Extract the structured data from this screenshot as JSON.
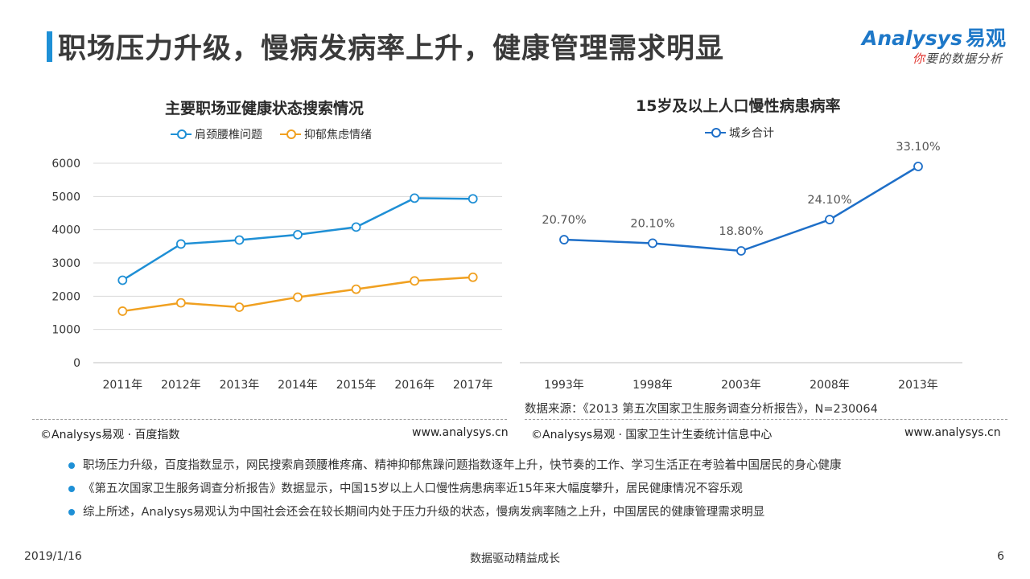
{
  "header": {
    "title": "职场压力升级，慢病发病率上升，健康管理需求明显",
    "logo_word": "Analysys",
    "logo_cn": "易观",
    "logo_slogan_first": "你",
    "logo_slogan_rest": "要的数据分析"
  },
  "colors": {
    "blue": "#1e8fd5",
    "orange": "#f0a020",
    "accent": "#1e90d6"
  },
  "chart_data": [
    {
      "type": "line",
      "title": "主要职场亚健康状态搜索情况",
      "categories": [
        "2011年",
        "2012年",
        "2013年",
        "2014年",
        "2015年",
        "2016年",
        "2017年"
      ],
      "series": [
        {
          "name": "肩颈腰椎问题",
          "color": "#1e8fd5",
          "values": [
            2480,
            3570,
            3690,
            3850,
            4080,
            4950,
            4930
          ]
        },
        {
          "name": "抑郁焦虑情绪",
          "color": "#f0a020",
          "values": [
            1550,
            1800,
            1670,
            1970,
            2210,
            2460,
            2570
          ]
        }
      ],
      "yticks": [
        "0",
        "1000",
        "2000",
        "3000",
        "4000",
        "5000",
        "6000"
      ],
      "ylim": [
        0,
        6000
      ],
      "grid": true,
      "legend": "top"
    },
    {
      "type": "line",
      "title": "15岁及以上人口慢性病患病率",
      "categories": [
        "1993年",
        "1998年",
        "2003年",
        "2008年",
        "2013年"
      ],
      "series": [
        {
          "name": "城乡合计",
          "color": "#1e6fc8",
          "values": [
            20.7,
            20.1,
            18.8,
            24.1,
            33.1
          ],
          "labels": [
            "20.70%",
            "20.10%",
            "18.80%",
            "24.10%",
            "33.10%"
          ]
        }
      ],
      "ylim": [
        10,
        35
      ],
      "grid": false,
      "legend": "top"
    }
  ],
  "data_source_note": "数据来源：《2013 第五次国家卫生服务调查分析报告》，N=230064",
  "sources": {
    "left_credit": "©Analysys易观 · 百度指数",
    "left_url": "www.analysys.cn",
    "right_credit": "©Analysys易观 · 国家卫生计生委统计信息中心",
    "right_url": "www.analysys.cn"
  },
  "bullets": [
    "职场压力升级，百度指数显示，网民搜索肩颈腰椎疼痛、精神抑郁焦躁问题指数逐年上升，快节奏的工作、学习生活正在考验着中国居民的身心健康",
    "《第五次国家卫生服务调查分析报告》数据显示，中国15岁以上人口慢性病患病率近15年来大幅度攀升，居民健康情况不容乐观",
    "综上所述，Analysys易观认为中国社会还会在较长期间内处于压力升级的状态，慢病发病率随之上升，中国居民的健康管理需求明显"
  ],
  "footer": {
    "date": "2019/1/16",
    "slogan": "数据驱动精益成长",
    "page": "6"
  }
}
